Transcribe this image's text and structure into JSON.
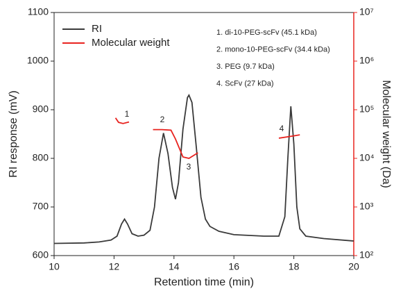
{
  "chart_data": {
    "type": "line",
    "xlabel": "Retention time (min)",
    "ylabel": "RI response (mV)",
    "y2label": "Molecular weight (Da)",
    "xlim": [
      10,
      20
    ],
    "xticks": [
      10,
      12,
      14,
      16,
      18,
      20
    ],
    "ylim": [
      600,
      1100
    ],
    "yticks": [
      600,
      700,
      800,
      900,
      1000,
      1100
    ],
    "y2lim": [
      100,
      10000000
    ],
    "y2log": true,
    "y2ticks": [
      {
        "value": 100,
        "label": "10²"
      },
      {
        "value": 1000,
        "label": "10³"
      },
      {
        "value": 10000,
        "label": "10⁴"
      },
      {
        "value": 100000,
        "label": "10⁵"
      },
      {
        "value": 1000000,
        "label": "10⁶"
      },
      {
        "value": 10000000,
        "label": "10⁷"
      }
    ],
    "y2color": "#e8231f",
    "legend": "upper left",
    "series": [
      {
        "name": "RI",
        "color": "#3a3a3a",
        "x": [
          10,
          11,
          11.5,
          11.9,
          12.1,
          12.25,
          12.35,
          12.45,
          12.6,
          12.8,
          13.0,
          13.2,
          13.35,
          13.5,
          13.65,
          13.8,
          13.95,
          14.05,
          14.15,
          14.3,
          14.45,
          14.5,
          14.6,
          14.75,
          14.9,
          15.05,
          15.2,
          15.5,
          16,
          17,
          17.5,
          17.7,
          17.8,
          17.9,
          18.0,
          18.1,
          18.2,
          18.4,
          19,
          20
        ],
        "values": [
          625,
          626,
          628,
          632,
          640,
          665,
          675,
          665,
          645,
          640,
          642,
          652,
          700,
          800,
          852,
          810,
          740,
          716,
          750,
          860,
          925,
          930,
          915,
          820,
          720,
          675,
          660,
          650,
          643,
          640,
          640,
          680,
          800,
          907,
          830,
          700,
          655,
          640,
          635,
          630
        ]
      },
      {
        "name": "Molecular weight",
        "color": "#e8231f",
        "axis": "y2",
        "x": [
          12.05,
          12.15,
          12.3,
          12.5,
          13.0,
          13.3,
          13.6,
          13.9,
          14.05,
          14.3,
          14.5,
          14.8,
          17.0,
          17.5,
          18.0,
          18.2
        ],
        "values": [
          68000,
          55000,
          52000,
          56000,
          null,
          39000,
          39000,
          38000,
          25000,
          10700,
          10000,
          13000,
          null,
          26000,
          29000,
          30500
        ]
      }
    ],
    "annotations": [
      "1",
      "2",
      "3",
      "4"
    ],
    "notes": [
      "1. di-10-PEG-scFv (45.1 kDa)",
      "2. mono-10-PEG-scFv (34.4 kDa)",
      "3. PEG (9.7 kDa)",
      "4. ScFv (27 kDa)"
    ]
  }
}
